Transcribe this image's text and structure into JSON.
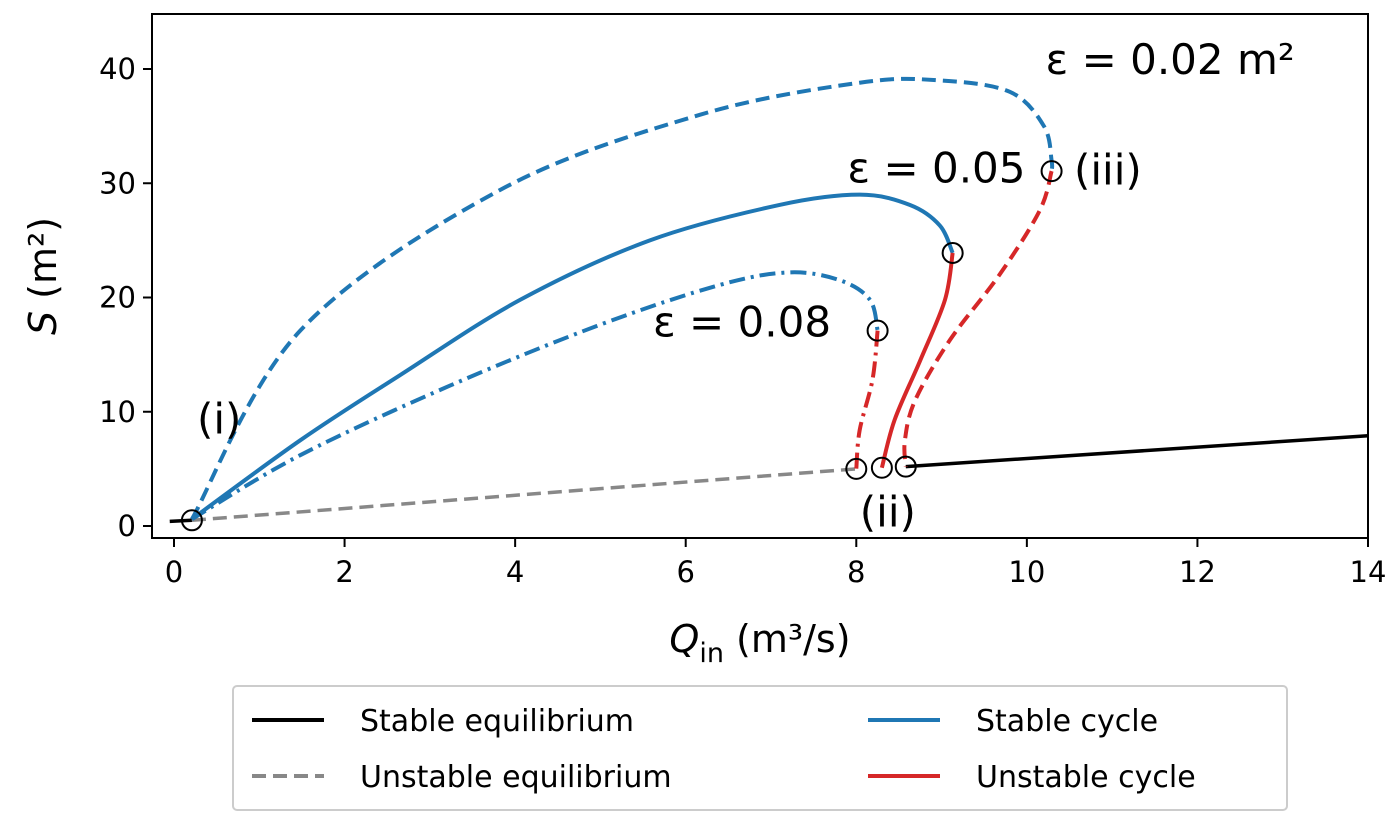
{
  "chart_data": {
    "type": "line",
    "xlabel": "Q_in (m³/s)",
    "xlabel_main": "Q",
    "xlabel_sub": "in",
    "xlabel_units": " (m³/s)",
    "ylabel": "S (m²)",
    "ylabel_main": "S",
    "ylabel_units": " (m²)",
    "xlim": [
      -0.26,
      14
    ],
    "ylim": [
      -1.05,
      44.8
    ],
    "xticks": [
      0,
      2,
      4,
      6,
      8,
      10,
      12,
      14
    ],
    "yticks": [
      0,
      10,
      20,
      30,
      40
    ],
    "grid": false,
    "colors": {
      "stable_eq": "#000000",
      "unstable_eq": "#888888",
      "stable_cycle": "#1f77b4",
      "unstable_cycle": "#d62728"
    },
    "series": [
      {
        "name": "Stable equilibrium",
        "kind": "stable_eq",
        "style": "solid",
        "x": [
          -0.05,
          0.21
        ],
        "y": [
          0.4,
          0.5
        ]
      },
      {
        "name": "Stable equilibrium",
        "kind": "stable_eq",
        "style": "solid",
        "x": [
          8.58,
          14
        ],
        "y": [
          5.2,
          7.9
        ]
      },
      {
        "name": "Unstable equilibrium",
        "kind": "unstable_eq",
        "style": "dashed",
        "x": [
          0.21,
          8.0
        ],
        "y": [
          0.5,
          5.0
        ]
      },
      {
        "name": "Stable cycle ε=0.02",
        "kind": "stable_cycle",
        "style": "dashed",
        "x": [
          0.21,
          1.48,
          3.82,
          6.17,
          8.04,
          8.98,
          9.8,
          10.2,
          10.29,
          10.29
        ],
        "y": [
          0.6,
          17.1,
          29.4,
          36.0,
          38.8,
          39.0,
          38.0,
          35.0,
          32.0,
          31.06
        ]
      },
      {
        "name": "Unstable cycle ε=0.02",
        "kind": "unstable_cycle",
        "style": "dashed",
        "x": [
          10.29,
          10.15,
          9.68,
          9.1,
          8.69,
          8.57,
          8.58
        ],
        "y": [
          31.06,
          27.6,
          22.0,
          16.3,
          11.0,
          7.5,
          5.2
        ]
      },
      {
        "name": "Stable cycle ε=0.05",
        "kind": "stable_cycle",
        "style": "solid",
        "x": [
          0.21,
          1.48,
          2.65,
          4.06,
          5.58,
          7.1,
          8.04,
          8.63,
          8.98,
          9.13
        ],
        "y": [
          0.6,
          7.5,
          13.2,
          19.8,
          25.0,
          28.1,
          29.0,
          28.1,
          26.3,
          23.9
        ]
      },
      {
        "name": "Unstable cycle ε=0.05",
        "kind": "unstable_cycle",
        "style": "solid",
        "x": [
          9.13,
          9.04,
          8.75,
          8.45,
          8.3
        ],
        "y": [
          23.9,
          19.8,
          14.5,
          9.3,
          5.1
        ]
      },
      {
        "name": "Stable cycle ε=0.08",
        "kind": "stable_cycle",
        "style": "dashdot",
        "x": [
          0.21,
          1.48,
          3.24,
          4.99,
          6.4,
          7.22,
          7.81,
          8.16,
          8.25
        ],
        "y": [
          0.6,
          6.2,
          12.3,
          17.6,
          21.1,
          22.2,
          21.5,
          19.8,
          17.1
        ]
      },
      {
        "name": "Unstable cycle ε=0.08",
        "kind": "unstable_cycle",
        "style": "dashdot",
        "x": [
          8.25,
          8.19,
          8.04,
          8.0
        ],
        "y": [
          17.1,
          12.8,
          8.4,
          5.0
        ]
      }
    ],
    "markers": [
      {
        "x": 0.21,
        "y": 0.5
      },
      {
        "x": 8.0,
        "y": 5.0
      },
      {
        "x": 8.3,
        "y": 5.1
      },
      {
        "x": 8.58,
        "y": 5.2
      },
      {
        "x": 8.25,
        "y": 17.1
      },
      {
        "x": 9.13,
        "y": 23.9
      },
      {
        "x": 10.29,
        "y": 31.06
      }
    ],
    "annotations": [
      {
        "text": "ε = 0.02 m²",
        "x": 11.68,
        "y": 40.8
      },
      {
        "text": "ε = 0.05",
        "x": 8.94,
        "y": 31.3
      },
      {
        "text": "ε = 0.08",
        "x": 6.66,
        "y": 17.8
      },
      {
        "text": "(i)",
        "x": 0.53,
        "y": 9.3
      },
      {
        "text": "(ii)",
        "x": 8.37,
        "y": 1.2
      },
      {
        "text": "(iii)",
        "x": 10.95,
        "y": 31.1
      }
    ],
    "legend": {
      "placement": "below",
      "entries": [
        {
          "label": "Stable equilibrium",
          "kind": "stable_eq",
          "style": "solid"
        },
        {
          "label": "Unstable equilibrium",
          "kind": "unstable_eq",
          "style": "dashed"
        },
        {
          "label": "Stable cycle",
          "kind": "stable_cycle",
          "style": "solid"
        },
        {
          "label": "Unstable cycle",
          "kind": "unstable_cycle",
          "style": "solid"
        }
      ]
    }
  }
}
